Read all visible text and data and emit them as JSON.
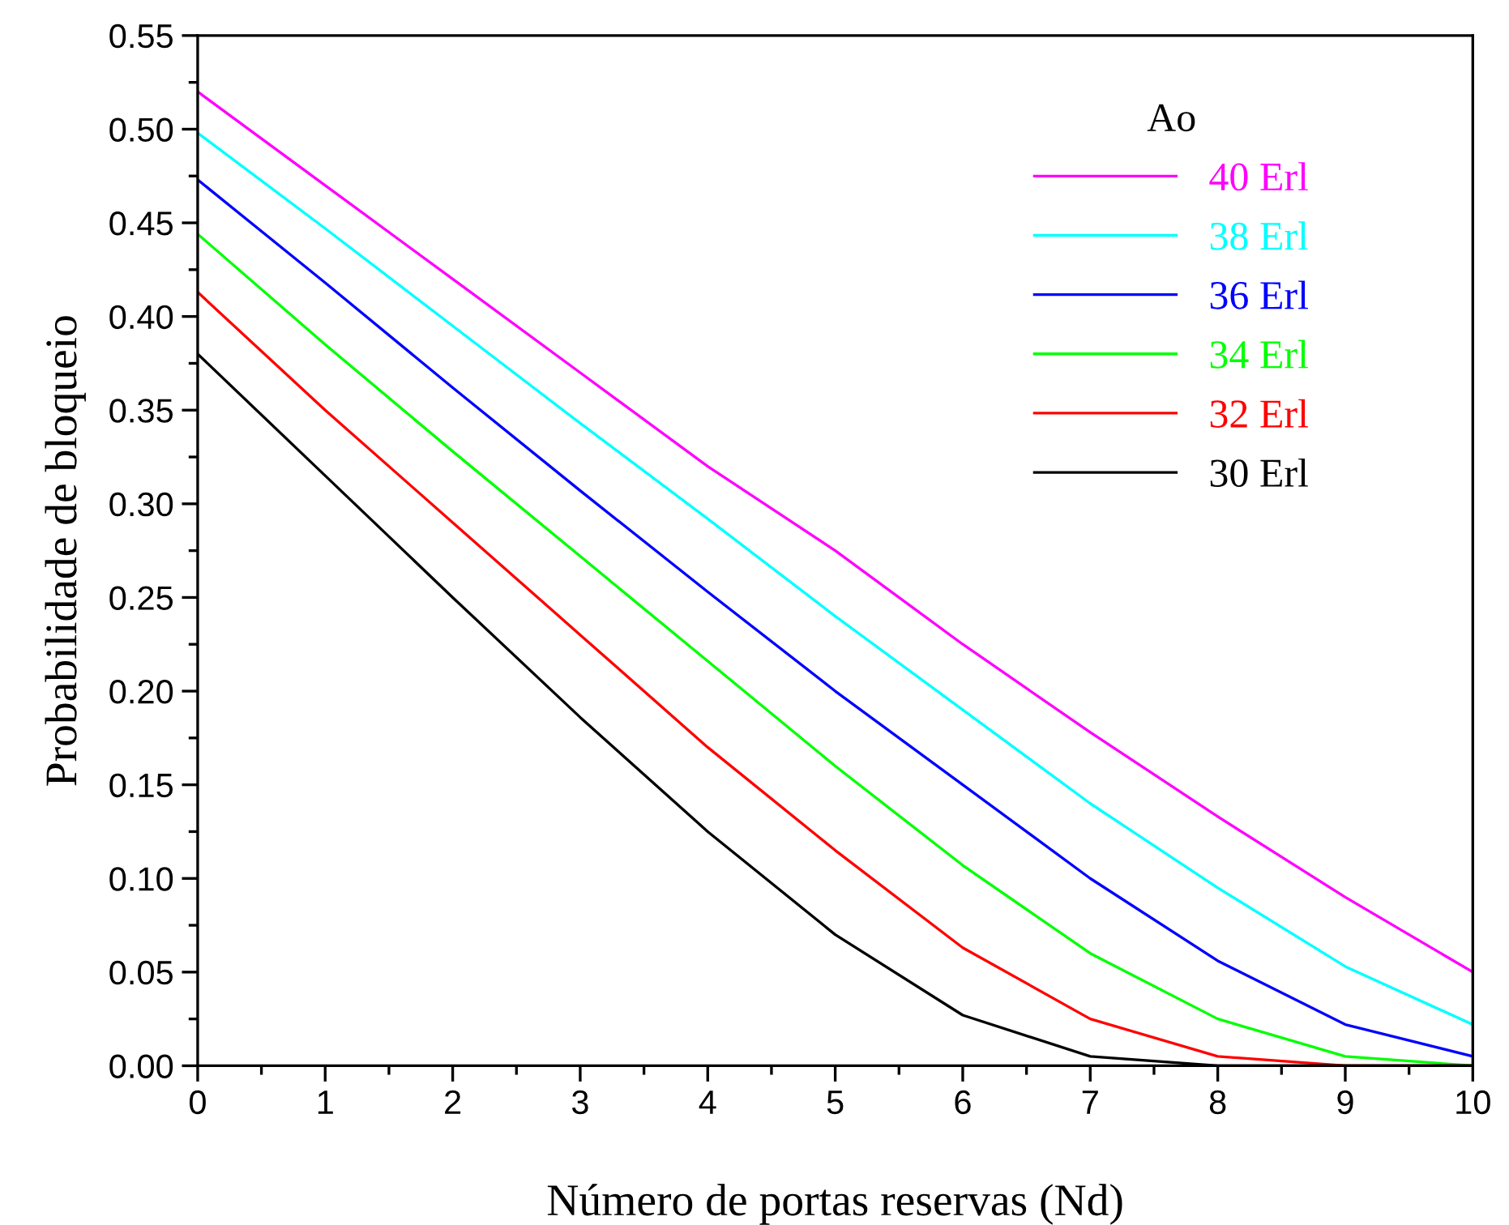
{
  "chart_data": {
    "type": "line",
    "xlabel": "Número de portas reservas (Nd)",
    "ylabel": "Probabilidade de bloqueio",
    "legend_title": "Ao",
    "legend": "top right",
    "grid": false,
    "marker": "none",
    "line_style": "solid",
    "x": [
      0,
      1,
      2,
      3,
      4,
      5,
      6,
      7,
      8,
      9,
      10
    ],
    "xlim": [
      0,
      10
    ],
    "xticks": [
      0,
      1,
      2,
      3,
      4,
      5,
      6,
      7,
      8,
      9,
      10
    ],
    "ylim": [
      0,
      0.55
    ],
    "yticks": [
      {
        "value": 0,
        "label": "0.00"
      },
      {
        "value": 0.05,
        "label": "0.05"
      },
      {
        "value": 0.1,
        "label": "0.10"
      },
      {
        "value": 0.15,
        "label": "0.15"
      },
      {
        "value": 0.2,
        "label": "0.20"
      },
      {
        "value": 0.25,
        "label": "0.25"
      },
      {
        "value": 0.3,
        "label": "0.30"
      },
      {
        "value": 0.35,
        "label": "0.35"
      },
      {
        "value": 0.4,
        "label": "0.40"
      },
      {
        "value": 0.45,
        "label": "0.45"
      },
      {
        "value": 0.5,
        "label": "0.50"
      },
      {
        "value": 0.55,
        "label": "0.55"
      }
    ],
    "series": [
      {
        "name": "40 Erl",
        "color": "#ff00ff",
        "values": [
          0.52,
          0.47,
          0.42,
          0.37,
          0.32,
          0.275,
          0.225,
          0.178,
          0.133,
          0.09,
          0.05
        ]
      },
      {
        "name": "38 Erl",
        "color": "#00ffff",
        "values": [
          0.498,
          0.447,
          0.395,
          0.343,
          0.292,
          0.24,
          0.19,
          0.14,
          0.095,
          0.053,
          0.022
        ]
      },
      {
        "name": "36 Erl",
        "color": "#0000ff",
        "values": [
          0.473,
          0.418,
          0.362,
          0.307,
          0.253,
          0.2,
          0.15,
          0.1,
          0.056,
          0.022,
          0.005
        ]
      },
      {
        "name": "34 Erl",
        "color": "#00ff00",
        "values": [
          0.444,
          0.385,
          0.328,
          0.272,
          0.216,
          0.16,
          0.107,
          0.06,
          0.025,
          0.005,
          0.0
        ]
      },
      {
        "name": "32 Erl",
        "color": "#ff0000",
        "values": [
          0.413,
          0.35,
          0.29,
          0.23,
          0.17,
          0.115,
          0.063,
          0.025,
          0.005,
          0.0,
          0.0
        ]
      },
      {
        "name": "30 Erl",
        "color": "#000000",
        "values": [
          0.38,
          0.315,
          0.25,
          0.186,
          0.125,
          0.07,
          0.027,
          0.005,
          0.0,
          0.0,
          0.0
        ]
      }
    ]
  }
}
